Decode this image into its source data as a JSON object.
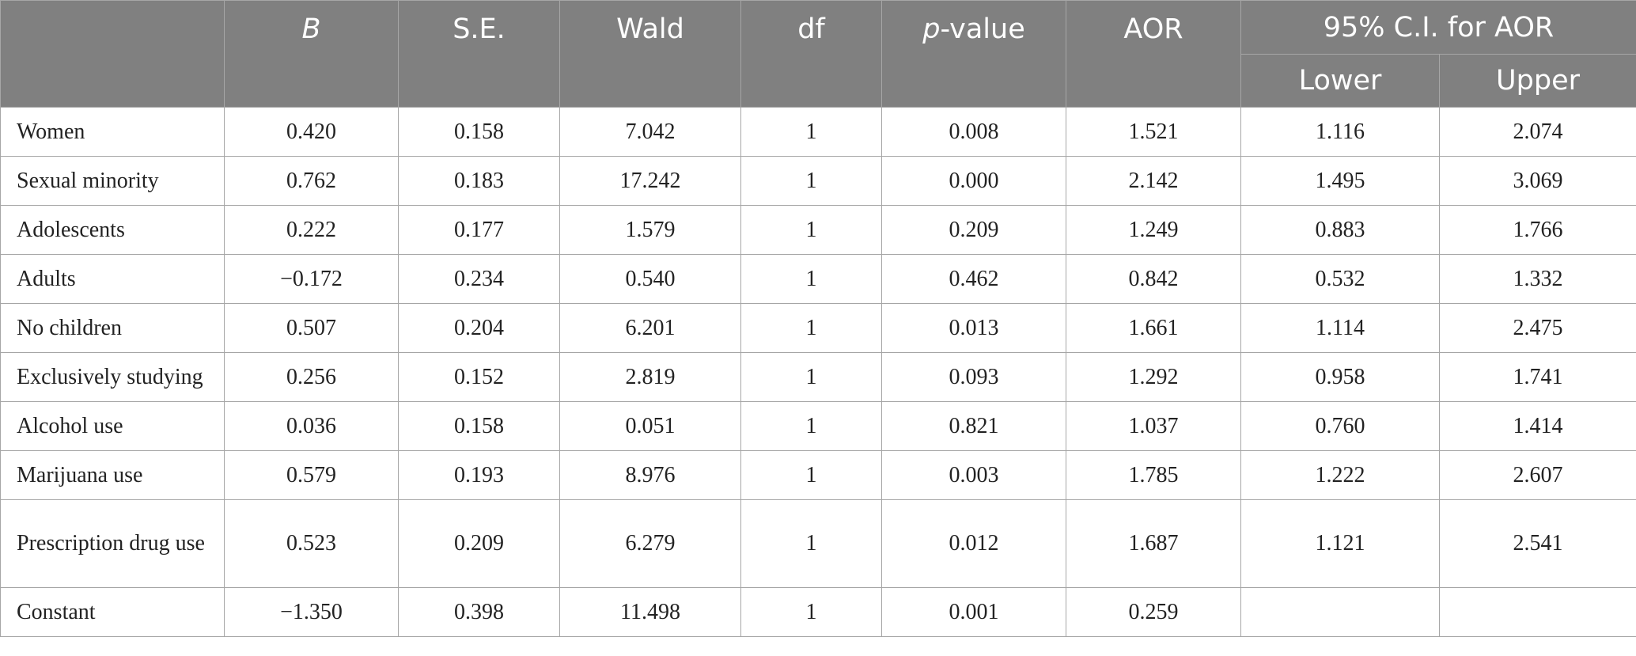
{
  "header": {
    "B": "B",
    "SE": "S.E.",
    "Wald": "Wald",
    "df": "df",
    "p_prefix": "p",
    "p_suffix": "-value",
    "AOR": "AOR",
    "CI": "95% C.I. for AOR",
    "Lower": "Lower",
    "Upper": "Upper"
  },
  "rows": [
    {
      "label": "Women",
      "B": "0.420",
      "SE": "0.158",
      "Wald": "7.042",
      "df": "1",
      "p": "0.008",
      "AOR": "1.521",
      "lower": "1.116",
      "upper": "2.074"
    },
    {
      "label": "Sexual minority",
      "B": "0.762",
      "SE": "0.183",
      "Wald": "17.242",
      "df": "1",
      "p": "0.000",
      "AOR": "2.142",
      "lower": "1.495",
      "upper": "3.069"
    },
    {
      "label": "Adolescents",
      "B": "0.222",
      "SE": "0.177",
      "Wald": "1.579",
      "df": "1",
      "p": "0.209",
      "AOR": "1.249",
      "lower": "0.883",
      "upper": "1.766"
    },
    {
      "label": "Adults",
      "B": "−0.172",
      "SE": "0.234",
      "Wald": "0.540",
      "df": "1",
      "p": "0.462",
      "AOR": "0.842",
      "lower": "0.532",
      "upper": "1.332"
    },
    {
      "label": "No children",
      "B": "0.507",
      "SE": "0.204",
      "Wald": "6.201",
      "df": "1",
      "p": "0.013",
      "AOR": "1.661",
      "lower": "1.114",
      "upper": "2.475"
    },
    {
      "label": "Exclusively studying",
      "B": "0.256",
      "SE": "0.152",
      "Wald": "2.819",
      "df": "1",
      "p": "0.093",
      "AOR": "1.292",
      "lower": "0.958",
      "upper": "1.741"
    },
    {
      "label": "Alcohol use",
      "B": "0.036",
      "SE": "0.158",
      "Wald": "0.051",
      "df": "1",
      "p": "0.821",
      "AOR": "1.037",
      "lower": "0.760",
      "upper": "1.414"
    },
    {
      "label": "Marijuana use",
      "B": "0.579",
      "SE": "0.193",
      "Wald": "8.976",
      "df": "1",
      "p": "0.003",
      "AOR": "1.785",
      "lower": "1.222",
      "upper": "2.607"
    },
    {
      "label": "Prescription drug use",
      "B": "0.523",
      "SE": "0.209",
      "Wald": "6.279",
      "df": "1",
      "p": "0.012",
      "AOR": "1.687",
      "lower": "1.121",
      "upper": "2.541"
    },
    {
      "label": "Constant",
      "B": "−1.350",
      "SE": "0.398",
      "Wald": "11.498",
      "df": "1",
      "p": "0.001",
      "AOR": "0.259",
      "lower": "",
      "upper": ""
    }
  ]
}
